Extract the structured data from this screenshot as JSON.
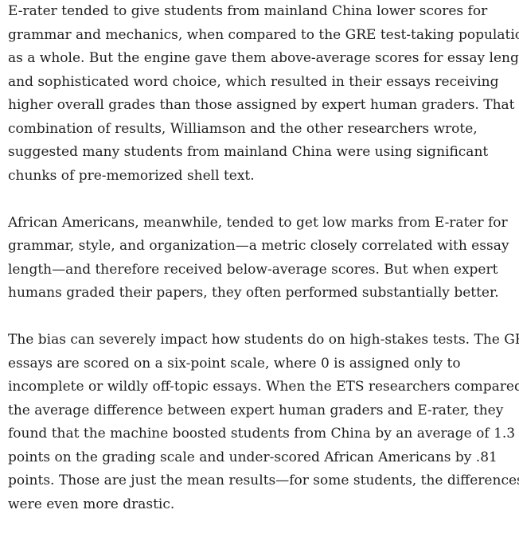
{
  "article": {
    "paragraphs": [
      {
        "lines": [
          "E-rater tended to give students from mainland China lower scores for",
          "grammar and mechanics, when compared to the GRE test-taking population",
          "as a whole. But the engine gave them above-average scores for essay length",
          "and sophisticated word choice, which resulted in their essays receiving",
          "higher overall grades than those assigned by expert human graders. That",
          "combination of results, Williamson and the other researchers wrote,",
          "suggested many students from mainland China were using significant",
          "chunks of pre-memorized shell text."
        ]
      },
      {
        "lines": [
          "African Americans, meanwhile, tended to get low marks from E-rater for",
          "grammar, style, and organization—a metric closely correlated with essay",
          "length—and therefore received below-average scores. But when expert",
          "humans graded their papers, they often performed substantially better."
        ]
      },
      {
        "lines": [
          "The bias can severely impact how students do on high-stakes tests. The GRE",
          "essays are scored on a six-point scale, where 0 is assigned only to",
          "incomplete or wildly off-topic essays. When the ETS researchers compared",
          "the average difference between expert human graders and E-rater, they",
          "found that the machine boosted students from China by an average of 1.3",
          "points on the grading scale and under-scored African Americans by .81",
          "points. Those are just the mean results—for some students, the differences",
          "were even more drastic."
        ]
      }
    ]
  }
}
